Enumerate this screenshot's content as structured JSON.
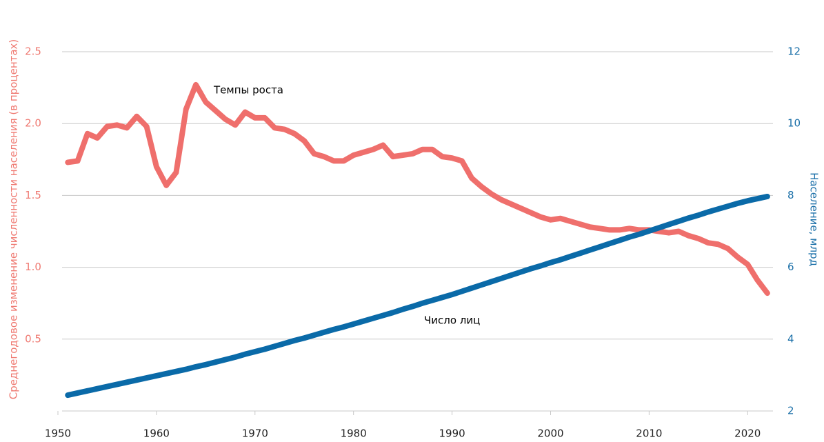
{
  "chart_data": {
    "type": "line",
    "y_label": "Среднегодовое изменение численности населения (в процентах)",
    "y2_label": "Население, млрд",
    "annotations": [
      "Темпы роста",
      "Число лиц"
    ],
    "x": [
      1951,
      1952,
      1953,
      1954,
      1955,
      1956,
      1957,
      1958,
      1959,
      1960,
      1961,
      1962,
      1963,
      1964,
      1965,
      1966,
      1967,
      1968,
      1969,
      1970,
      1971,
      1972,
      1973,
      1974,
      1975,
      1976,
      1977,
      1978,
      1979,
      1980,
      1981,
      1982,
      1983,
      1984,
      1985,
      1986,
      1987,
      1988,
      1989,
      1990,
      1991,
      1992,
      1993,
      1994,
      1995,
      1996,
      1997,
      1998,
      1999,
      2000,
      2001,
      2002,
      2003,
      2004,
      2005,
      2006,
      2007,
      2008,
      2009,
      2010,
      2011,
      2012,
      2013,
      2014,
      2015,
      2016,
      2017,
      2018,
      2019,
      2020,
      2021,
      2022
    ],
    "series": [
      {
        "name": "Темпы роста",
        "color": "#ef6f6c",
        "axis": "y",
        "values": [
          1.73,
          1.74,
          1.93,
          1.9,
          1.98,
          1.99,
          1.97,
          2.05,
          1.98,
          1.7,
          1.57,
          1.66,
          2.1,
          2.27,
          2.15,
          2.09,
          2.03,
          1.99,
          2.08,
          2.04,
          2.04,
          1.97,
          1.96,
          1.93,
          1.88,
          1.79,
          1.77,
          1.74,
          1.74,
          1.78,
          1.8,
          1.82,
          1.85,
          1.77,
          1.78,
          1.79,
          1.82,
          1.82,
          1.77,
          1.76,
          1.74,
          1.62,
          1.56,
          1.51,
          1.47,
          1.44,
          1.41,
          1.38,
          1.35,
          1.33,
          1.34,
          1.32,
          1.3,
          1.28,
          1.27,
          1.26,
          1.26,
          1.27,
          1.26,
          1.26,
          1.25,
          1.24,
          1.25,
          1.22,
          1.2,
          1.17,
          1.16,
          1.13,
          1.07,
          1.02,
          0.91,
          0.82
        ]
      },
      {
        "name": "Число лиц",
        "color": "#0a6aa8",
        "axis": "y2",
        "values": [
          2.44,
          2.5,
          2.56,
          2.62,
          2.68,
          2.74,
          2.8,
          2.86,
          2.92,
          2.98,
          3.04,
          3.1,
          3.16,
          3.23,
          3.29,
          3.36,
          3.43,
          3.5,
          3.58,
          3.65,
          3.72,
          3.8,
          3.88,
          3.96,
          4.03,
          4.11,
          4.19,
          4.27,
          4.34,
          4.42,
          4.5,
          4.58,
          4.66,
          4.74,
          4.83,
          4.91,
          5.0,
          5.08,
          5.16,
          5.24,
          5.33,
          5.42,
          5.51,
          5.6,
          5.69,
          5.78,
          5.87,
          5.96,
          6.04,
          6.13,
          6.21,
          6.3,
          6.39,
          6.48,
          6.57,
          6.66,
          6.75,
          6.84,
          6.92,
          7.01,
          7.1,
          7.19,
          7.28,
          7.37,
          7.45,
          7.54,
          7.62,
          7.7,
          7.78,
          7.85,
          7.91,
          7.97
        ]
      }
    ],
    "xlim": [
      1950,
      2022.5
    ],
    "xticks": [
      1950,
      1960,
      1970,
      1980,
      1990,
      2000,
      2010,
      2020
    ],
    "ylim": [
      0,
      2.5
    ],
    "yticks": [
      {
        "value": 0.5,
        "label": "0.5"
      },
      {
        "value": 1,
        "label": "1.0"
      },
      {
        "value": 1.5,
        "label": "1.5"
      },
      {
        "value": 2,
        "label": "2.0"
      },
      {
        "value": 2.5,
        "label": "2.5"
      }
    ],
    "y2lim": [
      2,
      12
    ],
    "y2ticks": [
      2,
      4,
      6,
      8,
      10,
      12
    ],
    "grid": true,
    "y_color": "#ef7a72",
    "y2_color": "#1a6fa8"
  }
}
